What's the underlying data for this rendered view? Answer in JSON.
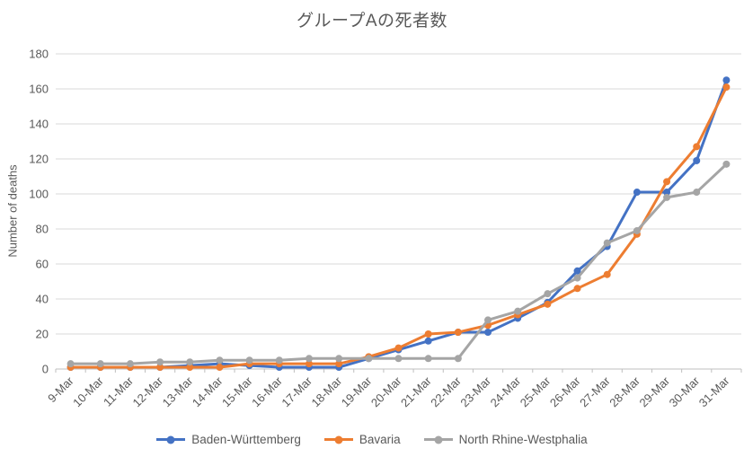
{
  "title": "グループAの死者数",
  "chart_data": {
    "type": "line",
    "title": "グループAの死者数",
    "xlabel": "",
    "ylabel": "Number of deaths",
    "ylim": [
      0,
      180
    ],
    "ytick_step": 20,
    "grid": true,
    "legend_position": "bottom",
    "marker": "circle",
    "categories": [
      "9-Mar",
      "10-Mar",
      "11-Mar",
      "12-Mar",
      "13-Mar",
      "14-Mar",
      "15-Mar",
      "16-Mar",
      "17-Mar",
      "18-Mar",
      "19-Mar",
      "20-Mar",
      "21-Mar",
      "22-Mar",
      "23-Mar",
      "24-Mar",
      "25-Mar",
      "26-Mar",
      "27-Mar",
      "28-Mar",
      "29-Mar",
      "30-Mar",
      "31-Mar"
    ],
    "series": [
      {
        "name": "Baden-Württemberg",
        "color": "#4472C4",
        "values": [
          1,
          1,
          1,
          1,
          2,
          3,
          2,
          1,
          1,
          1,
          6,
          11,
          16,
          21,
          21,
          29,
          38,
          56,
          70,
          101,
          101,
          119,
          165
        ]
      },
      {
        "name": "Bavaria",
        "color": "#ED7D31",
        "values": [
          1,
          1,
          1,
          1,
          1,
          1,
          3,
          3,
          3,
          3,
          7,
          12,
          20,
          21,
          25,
          31,
          37,
          46,
          54,
          77,
          107,
          127,
          161
        ]
      },
      {
        "name": "North Rhine-Westphalia",
        "color": "#A5A5A5",
        "values": [
          3,
          3,
          3,
          4,
          4,
          5,
          5,
          5,
          6,
          6,
          6,
          6,
          6,
          6,
          28,
          33,
          43,
          52,
          72,
          79,
          98,
          101,
          117
        ]
      }
    ]
  },
  "colors": {
    "text": "#595959",
    "gridline": "#D9D9D9",
    "axis": "#BFBFBF",
    "background": "#FFFFFF"
  }
}
